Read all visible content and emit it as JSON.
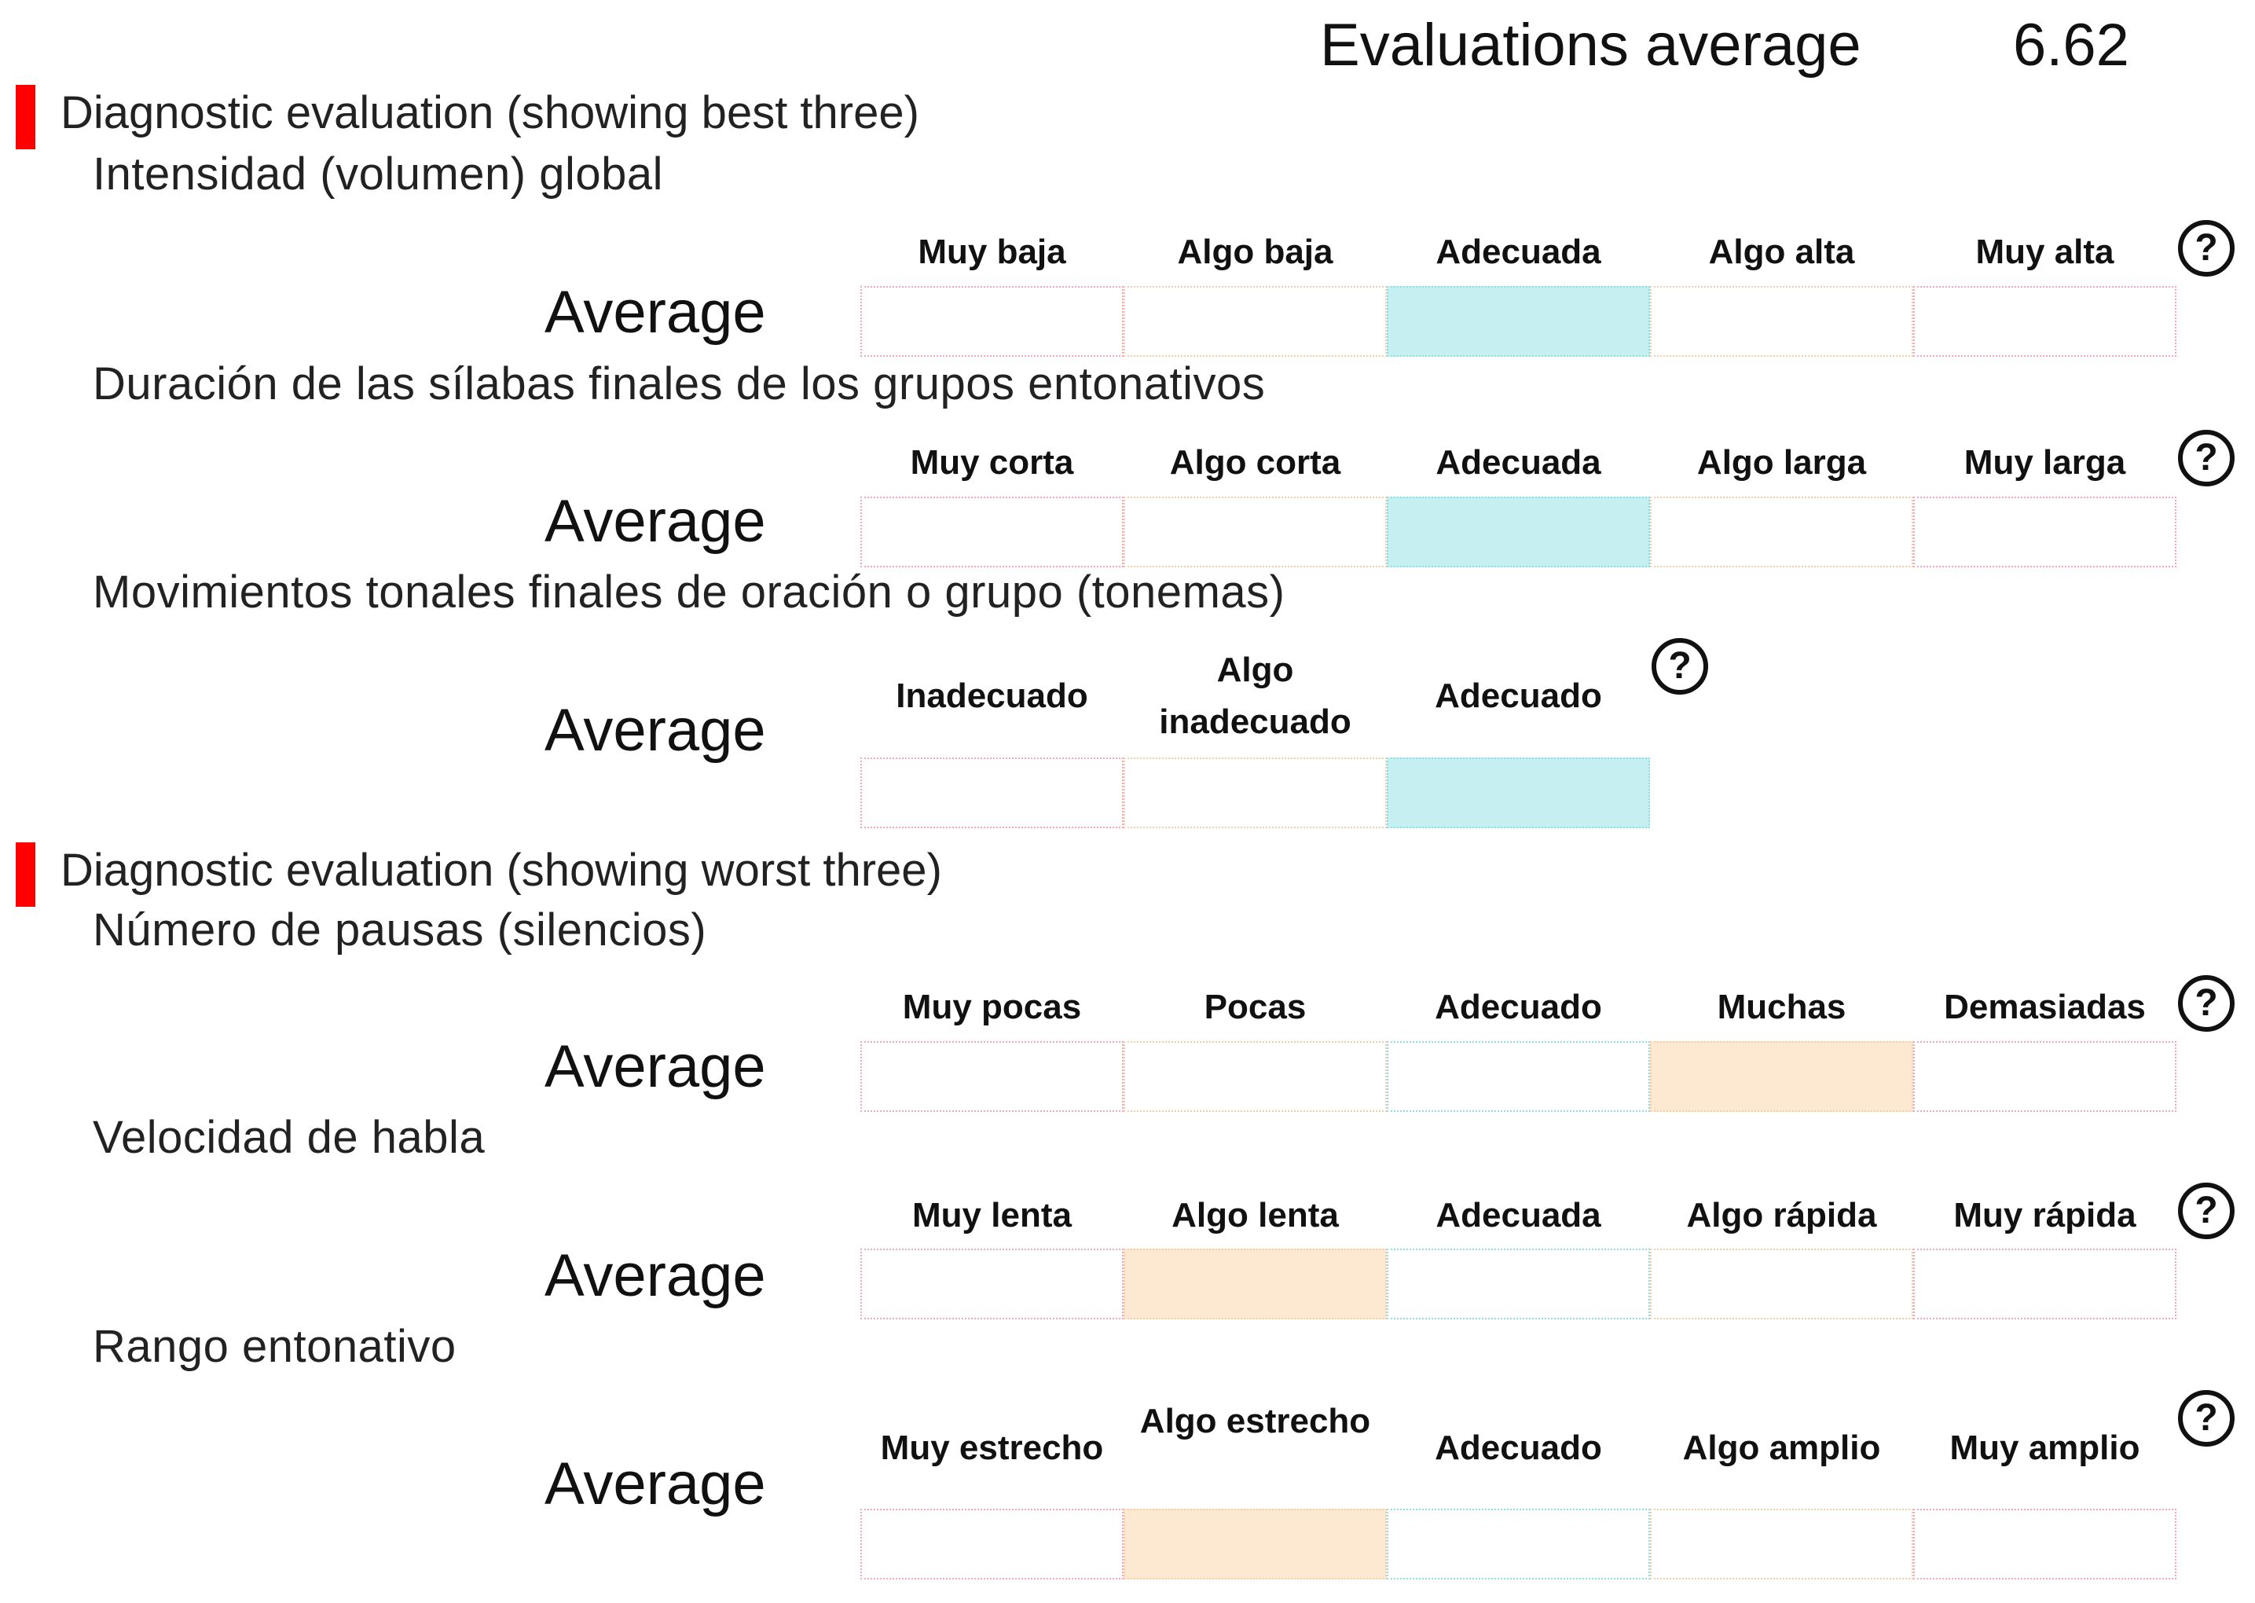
{
  "header": {
    "label": "Evaluations average",
    "value": "6.62"
  },
  "sections": [
    {
      "title": "Diagnostic evaluation (showing best three)",
      "questions": [
        {
          "title": "Intensidad (volumen) global",
          "average_label": "Average",
          "selected_index": 2,
          "options": [
            {
              "label": "Muy baja",
              "tone": "pink"
            },
            {
              "label": "Algo baja",
              "tone": "orange"
            },
            {
              "label": "Adecuada",
              "tone": "cyan"
            },
            {
              "label": "Algo alta",
              "tone": "orange"
            },
            {
              "label": "Muy alta",
              "tone": "pink"
            }
          ]
        },
        {
          "title": "Duración de las sílabas finales de los grupos entonativos",
          "average_label": "Average",
          "selected_index": 2,
          "options": [
            {
              "label": "Muy corta",
              "tone": "pink"
            },
            {
              "label": "Algo corta",
              "tone": "orange"
            },
            {
              "label": "Adecuada",
              "tone": "cyan"
            },
            {
              "label": "Algo larga",
              "tone": "orange"
            },
            {
              "label": "Muy larga",
              "tone": "pink"
            }
          ]
        },
        {
          "title": "Movimientos tonales finales de oración o grupo (tonemas)",
          "average_label": "Average",
          "selected_index": 2,
          "options": [
            {
              "label": "Inadecuado",
              "tone": "pink"
            },
            {
              "label": "Algo inadecuado",
              "tone": "orange"
            },
            {
              "label": "Adecuado",
              "tone": "cyan"
            }
          ]
        }
      ]
    },
    {
      "title": "Diagnostic evaluation (showing worst three)",
      "questions": [
        {
          "title": "Número de pausas (silencios)",
          "average_label": "Average",
          "selected_index": 3,
          "options": [
            {
              "label": "Muy pocas",
              "tone": "pink"
            },
            {
              "label": "Pocas",
              "tone": "orange"
            },
            {
              "label": "Adecuado",
              "tone": "cyan"
            },
            {
              "label": "Muchas",
              "tone": "orange"
            },
            {
              "label": "Demasiadas",
              "tone": "pink"
            }
          ]
        },
        {
          "title": "Velocidad de habla",
          "average_label": "Average",
          "selected_index": 1,
          "options": [
            {
              "label": "Muy lenta",
              "tone": "pink"
            },
            {
              "label": "Algo lenta",
              "tone": "orange"
            },
            {
              "label": "Adecuada",
              "tone": "cyan"
            },
            {
              "label": "Algo rápida",
              "tone": "orange"
            },
            {
              "label": "Muy rápida",
              "tone": "pink"
            }
          ]
        },
        {
          "title": "Rango entonativo",
          "average_label": "Average",
          "selected_index": 1,
          "options": [
            {
              "label": "Muy estrecho",
              "tone": "pink"
            },
            {
              "label": "Algo estrecho",
              "tone": "orange"
            },
            {
              "label": "Adecuado",
              "tone": "cyan"
            },
            {
              "label": "Algo amplio",
              "tone": "orange"
            },
            {
              "label": "Muy amplio",
              "tone": "pink"
            }
          ]
        }
      ]
    }
  ],
  "help_icon": "question-circle-icon",
  "help_glyph": "?",
  "colors": {
    "section_bar": "#ff0000",
    "selected_cyan": "#c5eff0",
    "selected_orange": "#fde8d2",
    "border_pink": "#f4a6c0",
    "border_orange": "#f9cda6",
    "border_cyan": "#8fe0e3"
  }
}
